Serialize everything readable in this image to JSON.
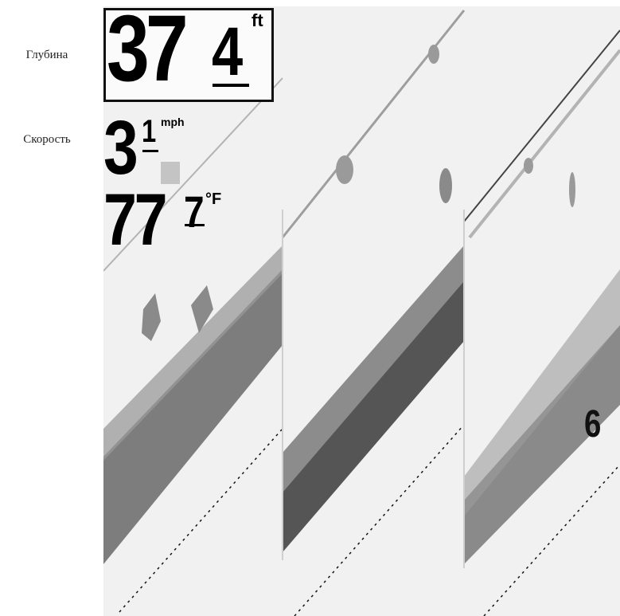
{
  "labels": {
    "depth": "Глубина",
    "speed": "Скорость"
  },
  "readouts": {
    "depth": {
      "whole": "37",
      "decimal": "4",
      "unit": "ft"
    },
    "speed": {
      "whole": "3",
      "decimal": "1",
      "unit": "mph"
    },
    "temperature": {
      "whole": "77",
      "decimal": "7",
      "unit": "°F"
    }
  },
  "depth_scale_label": "6",
  "colors": {
    "screen_background": "#f1f1f1",
    "sonar_return": "#7a7a7a",
    "sonar_dense": "#555555",
    "digits": "#000000"
  }
}
